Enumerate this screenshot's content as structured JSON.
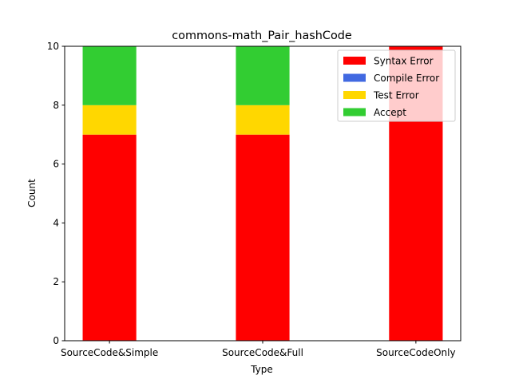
{
  "chart_data": {
    "type": "bar",
    "stacked": true,
    "title": "commons-math_Pair_hashCode",
    "xlabel": "Type",
    "ylabel": "Count",
    "ylim": [
      0,
      10
    ],
    "yticks": [
      "0",
      "2",
      "4",
      "6",
      "8",
      "10"
    ],
    "categories": [
      "SourceCode&Simple",
      "SourceCode&Full",
      "SourceCodeOnly"
    ],
    "series": [
      {
        "name": "Syntax Error",
        "color": "#ff0000",
        "values": [
          7,
          7,
          10
        ]
      },
      {
        "name": "Compile Error",
        "color": "#4169e1",
        "values": [
          0,
          0,
          0
        ]
      },
      {
        "name": "Test Error",
        "color": "#ffd700",
        "values": [
          1,
          1,
          0
        ]
      },
      {
        "name": "Accept",
        "color": "#32cd32",
        "values": [
          2,
          2,
          0
        ]
      }
    ],
    "legend_position": "top-right",
    "grid": false
  }
}
